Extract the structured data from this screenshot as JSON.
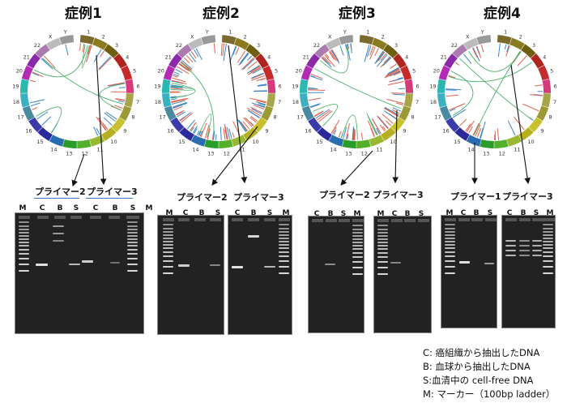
{
  "cases": [
    {
      "title": "症例1"
    },
    {
      "title": "症例2"
    },
    {
      "title": "症例3"
    },
    {
      "title": "症例4"
    }
  ],
  "primers": [
    "プライマー2",
    "プライマー3",
    "プライマー2",
    "プライマー3",
    "プライマー2",
    "プライマー3",
    "プライマー1",
    "プライマー3"
  ],
  "lanes": {
    "gel1": [
      "M",
      "C",
      "B",
      "S",
      "C",
      "B",
      "S",
      "M"
    ],
    "gel2a": [
      "M",
      "C",
      "B",
      "S"
    ],
    "gel2b": [
      "C",
      "B",
      "S",
      "M"
    ],
    "gel3a": [
      "C",
      "B",
      "S",
      "M"
    ],
    "gel3b": [
      "M",
      "C",
      "B",
      "S"
    ],
    "gel4a": [
      "M",
      "C",
      "B",
      "S"
    ],
    "gel4b": [
      "C",
      "B",
      "S",
      "M"
    ]
  },
  "chromosome_labels": [
    "1",
    "2",
    "3",
    "4",
    "5",
    "6",
    "7",
    "8",
    "9",
    "10",
    "11",
    "12",
    "13",
    "14",
    "15",
    "16",
    "17",
    "18",
    "19",
    "20",
    "21",
    "22",
    "X",
    "Y"
  ],
  "legend": [
    "C: 癌組織から抽出したDNA",
    "B: 血球から抽出したDNA",
    "S:血清中の cell-free DNA",
    "M: マーカー（100bp ladder）"
  ],
  "colors": {
    "ideogram": [
      "#7a6a2e",
      "#8a7a20",
      "#6e5e10",
      "#b0241f",
      "#c62a2a",
      "#d63a7a",
      "#a8a44a",
      "#9c9a34",
      "#c8c02c",
      "#b6b020",
      "#98b832",
      "#54b02a",
      "#2a9c2a",
      "#2a6cb0",
      "#2a2a9c",
      "#3a3aa8",
      "#4a8aa0",
      "#3ab0c0",
      "#2ab8b0",
      "#b42ab4",
      "#8a2aa8",
      "#aa7ab0",
      "#bbbbbb",
      "#999999"
    ],
    "link_red": "#e0604a",
    "link_blue": "#3a86c8",
    "link_green": "#4ab06a",
    "gel_bg": "#222222"
  }
}
